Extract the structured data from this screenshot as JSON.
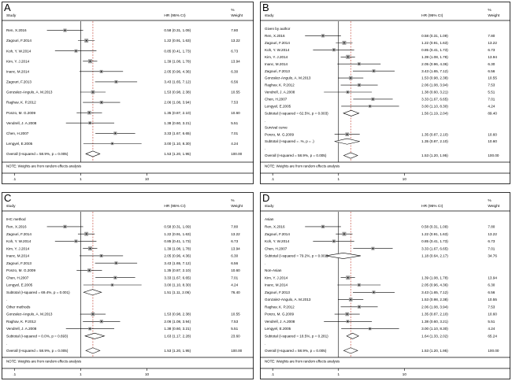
{
  "chart_data": [
    {
      "type": "forest",
      "panel_label": "A",
      "headers": {
        "study": "Study",
        "hr": "HR (95% CI)",
        "pct": "%",
        "weight": "Weight"
      },
      "axis": {
        "scale": "log",
        "ticks": [
          ".1",
          "1",
          "10"
        ]
      },
      "reference_line": 1,
      "overall_line": 1.53,
      "rows": [
        {
          "kind": "study",
          "label": "Ren, X.2016",
          "hr": 0.58,
          "lo": 0.31,
          "hi": 1.09,
          "hr_text": "0.58 (0.31, 1.09)",
          "weight": "7.80"
        },
        {
          "kind": "study",
          "label": "Zagouri, F.2014",
          "hr": 1.22,
          "lo": 0.91,
          "hi": 1.63,
          "hr_text": "1.22 (0.91, 1.63)",
          "weight": "13.22"
        },
        {
          "kind": "study",
          "label": "Koh, Y. W.2014",
          "hr": 0.85,
          "lo": 0.41,
          "hi": 1.73,
          "hr_text": "0.85 (0.41, 1.73)",
          "weight": "6.73"
        },
        {
          "kind": "study",
          "label": "Kim, Y. J.2014",
          "hr": 1.39,
          "lo": 1.08,
          "hi": 1.78,
          "hr_text": "1.39 (1.08, 1.78)",
          "weight": "13.94"
        },
        {
          "kind": "study",
          "label": "Inanc, M.2014",
          "hr": 2.05,
          "lo": 0.96,
          "hi": 4.36,
          "hr_text": "2.05 (0.96, 4.36)",
          "weight": "6.30"
        },
        {
          "kind": "study",
          "label": "Zagouri, F.2013",
          "hr": 3.43,
          "lo": 1.65,
          "hi": 7.12,
          "hr_text": "3.43 (1.65, 7.12)",
          "weight": "6.56"
        },
        {
          "kind": "study",
          "label": "Gonzalez-Angulo, A. M.2013",
          "hr": 1.53,
          "lo": 0.98,
          "hi": 2.38,
          "hr_text": "1.53 (0.98, 2.38)",
          "weight": "10.55"
        },
        {
          "kind": "study",
          "label": "Raghav, K. P.2012",
          "hr": 2.06,
          "lo": 1.08,
          "hi": 3.94,
          "hr_text": "2.06 (1.08, 3.94)",
          "weight": "7.53"
        },
        {
          "kind": "study",
          "label": "Ponzo, M. G.2009",
          "hr": 1.35,
          "lo": 0.87,
          "hi": 2.1,
          "hr_text": "1.35 (0.87, 2.10)",
          "weight": "10.60"
        },
        {
          "kind": "study",
          "label": "Vendrell, J. A.2008",
          "hr": 1.38,
          "lo": 0.6,
          "hi": 3.21,
          "hr_text": "1.38 (0.60, 3.21)",
          "weight": "5.51"
        },
        {
          "kind": "study",
          "label": "Chen, H.2007",
          "hr": 3.33,
          "lo": 1.67,
          "hi": 6.65,
          "hr_text": "3.33 (1.67, 6.65)",
          "weight": "7.01"
        },
        {
          "kind": "study",
          "label": "Lengyel, E.2005",
          "hr": 3.0,
          "lo": 1.1,
          "hi": 8.3,
          "hr_text": "3.00 (1.10, 8.30)",
          "weight": "4.24"
        },
        {
          "kind": "overall",
          "label": "Overall  (I-squared = 58.9%, p = 0.005)",
          "hr": 1.53,
          "lo": 1.2,
          "hi": 1.95,
          "hr_text": "1.53 (1.20, 1.95)",
          "weight": "100.00"
        }
      ],
      "note": "NOTE: Weights are from random effects analysis"
    },
    {
      "type": "forest",
      "panel_label": "B",
      "headers": {
        "study": "study",
        "hr": "HR (95% CI)",
        "pct": "%",
        "weight": "Weight"
      },
      "axis": {
        "scale": "log",
        "ticks": [
          ".1",
          "1",
          "10"
        ]
      },
      "reference_line": 1,
      "overall_line": 1.53,
      "rows": [
        {
          "kind": "group",
          "label": "Given by author"
        },
        {
          "kind": "study",
          "label": "Ren, X.2016",
          "hr": 0.58,
          "lo": 0.31,
          "hi": 1.09,
          "hr_text": "0.58 (0.31, 1.09)",
          "weight": "7.80"
        },
        {
          "kind": "study",
          "label": "Zagouri, F.2014",
          "hr": 1.22,
          "lo": 0.91,
          "hi": 1.63,
          "hr_text": "1.22 (0.91, 1.63)",
          "weight": "13.22"
        },
        {
          "kind": "study",
          "label": "Koh, Y. W.2014",
          "hr": 0.85,
          "lo": 0.41,
          "hi": 1.73,
          "hr_text": "0.85 (0.41, 1.73)",
          "weight": "6.73"
        },
        {
          "kind": "study",
          "label": "Kim, Y. J.2014",
          "hr": 1.39,
          "lo": 1.08,
          "hi": 1.78,
          "hr_text": "1.39 (1.08, 1.78)",
          "weight": "13.94"
        },
        {
          "kind": "study",
          "label": "Inanc, M.2014",
          "hr": 2.05,
          "lo": 0.96,
          "hi": 4.36,
          "hr_text": "2.05 (0.96, 4.36)",
          "weight": "6.30"
        },
        {
          "kind": "study",
          "label": "Zagouri, F.2013",
          "hr": 3.43,
          "lo": 1.65,
          "hi": 7.12,
          "hr_text": "3.43 (1.65, 7.12)",
          "weight": "6.56"
        },
        {
          "kind": "study",
          "label": "Gonzalez-Angulo, A. M.2013",
          "hr": 1.53,
          "lo": 0.98,
          "hi": 2.38,
          "hr_text": "1.53 (0.98, 2.38)",
          "weight": "10.55"
        },
        {
          "kind": "study",
          "label": "Raghav, K. P.2012",
          "hr": 2.06,
          "lo": 1.08,
          "hi": 3.94,
          "hr_text": "2.06 (1.08, 3.94)",
          "weight": "7.53"
        },
        {
          "kind": "study",
          "label": "Vendrell, J. A.2008",
          "hr": 1.38,
          "lo": 0.6,
          "hi": 3.21,
          "hr_text": "1.38 (0.60, 3.21)",
          "weight": "5.51"
        },
        {
          "kind": "study",
          "label": "Chen, H.2007",
          "hr": 3.33,
          "lo": 1.67,
          "hi": 6.65,
          "hr_text": "3.33 (1.67, 6.65)",
          "weight": "7.01"
        },
        {
          "kind": "study",
          "label": "Lengyel, E.2005",
          "hr": 3.0,
          "lo": 1.1,
          "hi": 8.3,
          "hr_text": "3.00 (1.10, 8.30)",
          "weight": "4.24"
        },
        {
          "kind": "subtotal",
          "label": "Subtotal  (I-squared = 62.5%, p = 0.003)",
          "hr": 1.56,
          "lo": 1.19,
          "hi": 2.04,
          "hr_text": "1.56 (1.19, 2.04)",
          "weight": "89.40"
        },
        {
          "kind": "spacer",
          "label": "."
        },
        {
          "kind": "group",
          "label": "Survival curve"
        },
        {
          "kind": "study",
          "label": "Ponzo, M. G.2009",
          "hr": 1.35,
          "lo": 0.87,
          "hi": 2.1,
          "hr_text": "1.35 (0.87, 2.10)",
          "weight": "10.60"
        },
        {
          "kind": "subtotal",
          "label": "Subtotal  (I-squared = .%, p = .)",
          "hr": 1.35,
          "lo": 0.87,
          "hi": 2.1,
          "hr_text": "1.35 (0.87, 2.10)",
          "weight": "10.60"
        },
        {
          "kind": "spacer",
          "label": "."
        },
        {
          "kind": "overall",
          "label": "Overall  (I-squared = 58.9%, p = 0.005)",
          "hr": 1.53,
          "lo": 1.2,
          "hi": 1.95,
          "hr_text": "1.53 (1.20, 1.95)",
          "weight": "100.00"
        }
      ],
      "note": "NOTE: Weights are from random effects analysis"
    },
    {
      "type": "forest",
      "panel_label": "C",
      "headers": {
        "study": "study",
        "hr": "HR (95% CI)",
        "pct": "%",
        "weight": "Weight"
      },
      "axis": {
        "scale": "log",
        "ticks": [
          ".1",
          "1",
          "10"
        ]
      },
      "reference_line": 1,
      "overall_line": 1.53,
      "rows": [
        {
          "kind": "group",
          "label": "IHC method"
        },
        {
          "kind": "study",
          "label": "Ren, X.2016",
          "hr": 0.58,
          "lo": 0.31,
          "hi": 1.09,
          "hr_text": "0.58 (0.31, 1.09)",
          "weight": "7.80"
        },
        {
          "kind": "study",
          "label": "Zagouri, F.2014",
          "hr": 1.22,
          "lo": 0.91,
          "hi": 1.63,
          "hr_text": "1.22 (0.91, 1.63)",
          "weight": "13.22"
        },
        {
          "kind": "study",
          "label": "Koh, Y. W.2014",
          "hr": 0.85,
          "lo": 0.41,
          "hi": 1.73,
          "hr_text": "0.85 (0.41, 1.73)",
          "weight": "6.73"
        },
        {
          "kind": "study",
          "label": "Kim, Y. J.2014",
          "hr": 1.39,
          "lo": 1.08,
          "hi": 1.78,
          "hr_text": "1.39 (1.08, 1.78)",
          "weight": "13.94"
        },
        {
          "kind": "study",
          "label": "Inanc, M.2014",
          "hr": 2.05,
          "lo": 0.96,
          "hi": 4.36,
          "hr_text": "2.05 (0.96, 4.36)",
          "weight": "6.30"
        },
        {
          "kind": "study",
          "label": "Zagouri, F.2013",
          "hr": 3.43,
          "lo": 1.65,
          "hi": 7.12,
          "hr_text": "3.43 (1.65, 7.12)",
          "weight": "6.56"
        },
        {
          "kind": "study",
          "label": "Ponzo, M. G.2009",
          "hr": 1.35,
          "lo": 0.87,
          "hi": 2.1,
          "hr_text": "1.35 (0.87, 2.10)",
          "weight": "10.60"
        },
        {
          "kind": "study",
          "label": "Chen, H.2007",
          "hr": 3.33,
          "lo": 1.67,
          "hi": 6.65,
          "hr_text": "3.33 (1.67, 6.65)",
          "weight": "7.01"
        },
        {
          "kind": "study",
          "label": "Lengyel, E.2005",
          "hr": 3.0,
          "lo": 1.1,
          "hi": 8.3,
          "hr_text": "3.00 (1.10, 8.30)",
          "weight": "4.24"
        },
        {
          "kind": "subtotal",
          "label": "Subtotal  (I-squared = 69.4%, p = 0.001)",
          "hr": 1.51,
          "lo": 1.11,
          "hi": 2.06,
          "hr_text": "1.51 (1.11, 2.06)",
          "weight": "76.40"
        },
        {
          "kind": "spacer",
          "label": "."
        },
        {
          "kind": "group",
          "label": "Other methods"
        },
        {
          "kind": "study",
          "label": "Gonzalez-Angulo, A. M.2013",
          "hr": 1.53,
          "lo": 0.98,
          "hi": 2.38,
          "hr_text": "1.53 (0.98, 2.38)",
          "weight": "10.55"
        },
        {
          "kind": "study",
          "label": "Raghav, K. P.2012",
          "hr": 2.06,
          "lo": 1.08,
          "hi": 3.94,
          "hr_text": "2.06 (1.08, 3.94)",
          "weight": "7.53"
        },
        {
          "kind": "study",
          "label": "Vendrell, J. A.2008",
          "hr": 1.38,
          "lo": 0.6,
          "hi": 3.21,
          "hr_text": "1.38 (0.60, 3.21)",
          "weight": "5.51"
        },
        {
          "kind": "subtotal",
          "label": "Subtotal  (I-squared = 0.0%, p = 0.693)",
          "hr": 1.63,
          "lo": 1.17,
          "hi": 2.28,
          "hr_text": "1.63 (1.17, 2.28)",
          "weight": "23.60"
        },
        {
          "kind": "spacer",
          "label": "."
        },
        {
          "kind": "overall",
          "label": "Overall  (I-squared = 58.9%, p = 0.005)",
          "hr": 1.53,
          "lo": 1.2,
          "hi": 1.95,
          "hr_text": "1.53 (1.20, 1.95)",
          "weight": "100.00"
        }
      ],
      "note": "NOTE: Weights are from random effects analysis"
    },
    {
      "type": "forest",
      "panel_label": "D",
      "headers": {
        "study": "study",
        "hr": "HR (95% CI)",
        "pct": "%",
        "weight": "Weight"
      },
      "axis": {
        "scale": "log",
        "ticks": [
          ".1",
          "1",
          "10"
        ]
      },
      "reference_line": 1,
      "overall_line": 1.53,
      "rows": [
        {
          "kind": "group",
          "label": "Asian"
        },
        {
          "kind": "study",
          "label": "Ren, X.2016",
          "hr": 0.58,
          "lo": 0.31,
          "hi": 1.09,
          "hr_text": "0.58 (0.31, 1.09)",
          "weight": "7.80"
        },
        {
          "kind": "study",
          "label": "Zagouri, F.2014",
          "hr": 1.22,
          "lo": 0.91,
          "hi": 1.63,
          "hr_text": "1.22 (0.91, 1.63)",
          "weight": "13.22"
        },
        {
          "kind": "study",
          "label": "Koh, Y. W.2014",
          "hr": 0.85,
          "lo": 0.41,
          "hi": 1.73,
          "hr_text": "0.85 (0.41, 1.73)",
          "weight": "6.73"
        },
        {
          "kind": "study",
          "label": "Chen, H.2007",
          "hr": 3.33,
          "lo": 1.67,
          "hi": 6.65,
          "hr_text": "3.33 (1.67, 6.65)",
          "weight": "7.01"
        },
        {
          "kind": "subtotal",
          "label": "Subtotal  (I-squared = 79.2%, p = 0.002)",
          "hr": 1.18,
          "lo": 0.64,
          "hi": 2.17,
          "hr_text": "1.18 (0.64, 2.17)",
          "weight": "34.76"
        },
        {
          "kind": "spacer",
          "label": "."
        },
        {
          "kind": "group",
          "label": "Non-Asian"
        },
        {
          "kind": "study",
          "label": "Kim, Y. J.2014",
          "hr": 1.39,
          "lo": 1.08,
          "hi": 1.78,
          "hr_text": "1.39 (1.08, 1.78)",
          "weight": "13.94"
        },
        {
          "kind": "study",
          "label": "Inanc, M.2014",
          "hr": 2.05,
          "lo": 0.96,
          "hi": 4.36,
          "hr_text": "2.05 (0.96, 4.36)",
          "weight": "6.30"
        },
        {
          "kind": "study",
          "label": "Zagouri, F.2013",
          "hr": 3.43,
          "lo": 1.65,
          "hi": 7.12,
          "hr_text": "3.43 (1.65, 7.12)",
          "weight": "6.56"
        },
        {
          "kind": "study",
          "label": "Gonzalez-Angulo, A. M.2013",
          "hr": 1.53,
          "lo": 0.98,
          "hi": 2.38,
          "hr_text": "1.53 (0.98, 2.38)",
          "weight": "10.55"
        },
        {
          "kind": "study",
          "label": "Raghav, K. P.2012",
          "hr": 2.06,
          "lo": 1.08,
          "hi": 3.94,
          "hr_text": "2.06 (1.08, 3.94)",
          "weight": "7.53"
        },
        {
          "kind": "study",
          "label": "Ponzo, M. G.2009",
          "hr": 1.35,
          "lo": 0.87,
          "hi": 2.1,
          "hr_text": "1.35 (0.87, 2.10)",
          "weight": "10.60"
        },
        {
          "kind": "study",
          "label": "Vendrell, J. A.2008",
          "hr": 1.38,
          "lo": 0.6,
          "hi": 3.21,
          "hr_text": "1.38 (0.60, 3.21)",
          "weight": "5.51"
        },
        {
          "kind": "study",
          "label": "Lengyel, E.2005",
          "hr": 3.0,
          "lo": 1.1,
          "hi": 8.3,
          "hr_text": "3.00 (1.10, 8.30)",
          "weight": "4.24"
        },
        {
          "kind": "subtotal",
          "label": "Subtotal  (I-squared = 18.5%, p = 0.281)",
          "hr": 1.64,
          "lo": 1.33,
          "hi": 2.02,
          "hr_text": "1.64 (1.33, 2.02)",
          "weight": "65.24"
        },
        {
          "kind": "spacer",
          "label": "."
        },
        {
          "kind": "overall",
          "label": "Overall  (I-squared = 58.9%, p = 0.005)",
          "hr": 1.53,
          "lo": 1.2,
          "hi": 1.95,
          "hr_text": "1.53 (1.20, 1.95)",
          "weight": "100.00"
        }
      ],
      "note": "NOTE: Weights are from random effects analysis"
    }
  ],
  "style": {
    "line_color": "#000000",
    "reference_line_color": "#000000",
    "overall_line_color": "#c0392b",
    "box_color": "#9a9a9a",
    "diamond_fill": "#ffffff"
  }
}
